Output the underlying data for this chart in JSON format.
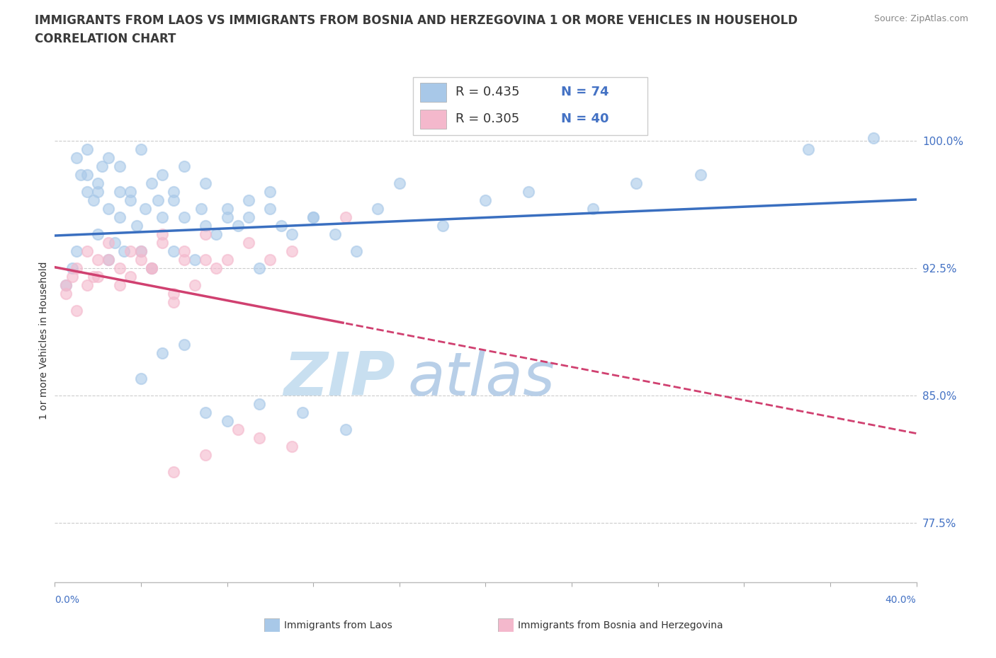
{
  "title_line1": "IMMIGRANTS FROM LAOS VS IMMIGRANTS FROM BOSNIA AND HERZEGOVINA 1 OR MORE VEHICLES IN HOUSEHOLD",
  "title_line2": "CORRELATION CHART",
  "source_text": "Source: ZipAtlas.com",
  "xmin": 0.0,
  "xmax": 40.0,
  "ymin": 74.0,
  "ymax": 102.5,
  "ytick_vals": [
    77.5,
    85.0,
    92.5,
    100.0
  ],
  "legend_r1": "R = 0.435",
  "legend_n1": "N = 74",
  "legend_r2": "R = 0.305",
  "legend_n2": "N = 40",
  "color_laos": "#a8c8e8",
  "color_bosnia": "#f4b8cc",
  "color_laos_line": "#3a6fc0",
  "color_bosnia_line": "#d04070",
  "color_axis_label": "#4472c4",
  "laos_x": [
    0.5,
    0.8,
    1.0,
    1.2,
    1.5,
    1.5,
    1.8,
    2.0,
    2.0,
    2.2,
    2.5,
    2.5,
    2.8,
    3.0,
    3.0,
    3.2,
    3.5,
    3.8,
    4.0,
    4.2,
    4.5,
    4.8,
    5.0,
    5.5,
    5.5,
    6.0,
    6.5,
    6.8,
    7.0,
    7.5,
    8.0,
    8.5,
    9.0,
    9.5,
    10.0,
    10.5,
    11.0,
    12.0,
    13.0,
    14.0,
    15.0,
    16.0,
    18.0,
    20.0,
    22.0,
    25.0,
    27.0,
    30.0,
    35.0,
    38.0,
    1.0,
    1.5,
    2.0,
    2.5,
    3.0,
    3.5,
    4.0,
    4.5,
    5.0,
    5.5,
    6.0,
    7.0,
    8.0,
    9.0,
    10.0,
    12.0,
    4.0,
    5.0,
    6.0,
    7.0,
    8.0,
    9.5,
    11.5,
    13.5
  ],
  "laos_y": [
    91.5,
    92.5,
    93.5,
    98.0,
    99.5,
    97.0,
    96.5,
    97.5,
    94.5,
    98.5,
    96.0,
    93.0,
    94.0,
    97.0,
    95.5,
    93.5,
    96.5,
    95.0,
    93.5,
    96.0,
    92.5,
    96.5,
    95.5,
    96.5,
    93.5,
    95.5,
    93.0,
    96.0,
    95.0,
    94.5,
    96.0,
    95.0,
    95.5,
    92.5,
    96.0,
    95.0,
    94.5,
    95.5,
    94.5,
    93.5,
    96.0,
    97.5,
    95.0,
    96.5,
    97.0,
    96.0,
    97.5,
    98.0,
    99.5,
    100.2,
    99.0,
    98.0,
    97.0,
    99.0,
    98.5,
    97.0,
    99.5,
    97.5,
    98.0,
    97.0,
    98.5,
    97.5,
    95.5,
    96.5,
    97.0,
    95.5,
    86.0,
    87.5,
    88.0,
    84.0,
    83.5,
    84.5,
    84.0,
    83.0
  ],
  "bosnia_x": [
    0.5,
    0.8,
    1.0,
    1.5,
    1.8,
    2.0,
    2.5,
    3.0,
    3.5,
    4.0,
    4.5,
    5.0,
    5.5,
    6.0,
    7.0,
    8.0,
    9.0,
    10.0,
    11.0,
    13.5,
    0.5,
    1.0,
    1.5,
    2.0,
    2.5,
    3.0,
    3.5,
    4.0,
    4.5,
    5.0,
    5.5,
    6.0,
    6.5,
    7.0,
    7.5,
    8.5,
    9.5,
    11.0,
    5.5,
    7.0
  ],
  "bosnia_y": [
    91.5,
    92.0,
    90.0,
    93.5,
    92.0,
    93.0,
    94.0,
    91.5,
    93.5,
    93.0,
    92.5,
    94.5,
    90.5,
    93.0,
    94.5,
    93.0,
    94.0,
    93.0,
    93.5,
    95.5,
    91.0,
    92.5,
    91.5,
    92.0,
    93.0,
    92.5,
    92.0,
    93.5,
    92.5,
    94.0,
    91.0,
    93.5,
    91.5,
    93.0,
    92.5,
    83.0,
    82.5,
    82.0,
    80.5,
    81.5
  ]
}
